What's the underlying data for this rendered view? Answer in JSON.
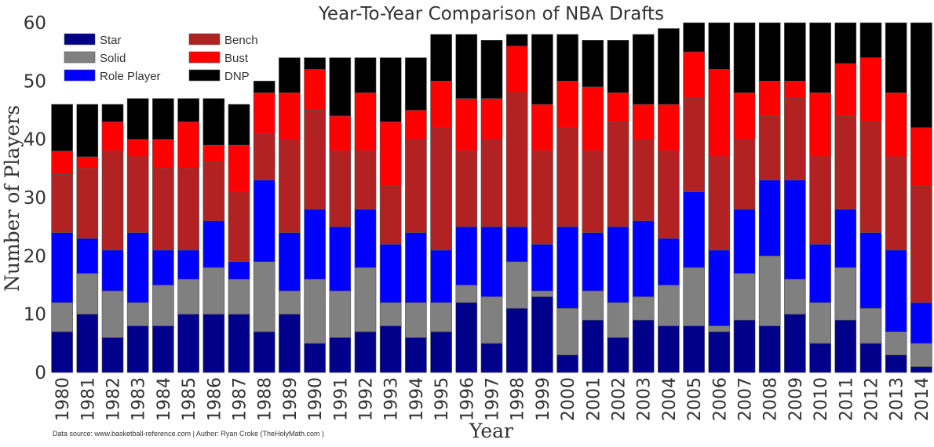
{
  "chart_data": {
    "type": "bar",
    "stacked": true,
    "title": "Year-To-Year Comparison of NBA Drafts",
    "xlabel": "Year",
    "ylabel": "Number of Players",
    "ylim": [
      0,
      60
    ],
    "yticks": [
      0,
      10,
      20,
      30,
      40,
      50,
      60
    ],
    "grid": false,
    "legend_position": "top-left",
    "categories": [
      "1980",
      "1981",
      "1982",
      "1983",
      "1984",
      "1985",
      "1986",
      "1987",
      "1988",
      "1989",
      "1990",
      "1991",
      "1992",
      "1993",
      "1994",
      "1995",
      "1996",
      "1997",
      "1998",
      "1999",
      "2000",
      "2001",
      "2002",
      "2003",
      "2004",
      "2005",
      "2006",
      "2007",
      "2008",
      "2009",
      "2010",
      "2011",
      "2012",
      "2013",
      "2014"
    ],
    "series": [
      {
        "name": "Star",
        "color": "#00008b",
        "values": [
          7,
          10,
          6,
          8,
          8,
          10,
          10,
          10,
          7,
          10,
          5,
          6,
          7,
          8,
          6,
          7,
          12,
          5,
          11,
          13,
          3,
          9,
          6,
          9,
          8,
          8,
          7,
          9,
          8,
          10,
          5,
          9,
          5,
          3,
          1
        ]
      },
      {
        "name": "Solid",
        "color": "#808080",
        "values": [
          5,
          7,
          8,
          4,
          7,
          6,
          8,
          6,
          12,
          4,
          11,
          8,
          11,
          4,
          6,
          5,
          3,
          8,
          8,
          1,
          8,
          5,
          6,
          4,
          7,
          10,
          1,
          8,
          12,
          6,
          7,
          9,
          6,
          4,
          4
        ]
      },
      {
        "name": "Role Player",
        "color": "#0000ff",
        "values": [
          12,
          6,
          7,
          12,
          6,
          5,
          8,
          3,
          14,
          10,
          12,
          11,
          10,
          10,
          12,
          9,
          10,
          12,
          6,
          8,
          14,
          10,
          13,
          13,
          8,
          13,
          13,
          11,
          13,
          17,
          10,
          10,
          13,
          14,
          7
        ]
      },
      {
        "name": "Bench",
        "color": "#b22222",
        "values": [
          10,
          12,
          17,
          13,
          14,
          14,
          10,
          12,
          8,
          16,
          17,
          13,
          10,
          10,
          16,
          21,
          13,
          15,
          23,
          16,
          17,
          14,
          18,
          14,
          15,
          16,
          16,
          12,
          11,
          14,
          15,
          16,
          19,
          16,
          20
        ]
      },
      {
        "name": "Bust",
        "color": "#ff0000",
        "values": [
          4,
          2,
          5,
          3,
          5,
          8,
          3,
          8,
          7,
          8,
          7,
          6,
          10,
          11,
          5,
          8,
          9,
          7,
          8,
          8,
          8,
          11,
          5,
          6,
          8,
          8,
          15,
          8,
          6,
          3,
          11,
          9,
          11,
          11,
          10
        ]
      },
      {
        "name": "DNP",
        "color": "#000000",
        "values": [
          8,
          9,
          3,
          7,
          7,
          4,
          8,
          7,
          2,
          6,
          2,
          10,
          6,
          11,
          9,
          8,
          11,
          10,
          2,
          12,
          8,
          8,
          9,
          12,
          13,
          5,
          8,
          12,
          10,
          10,
          12,
          7,
          6,
          12,
          18
        ]
      }
    ]
  },
  "footer": {
    "source": "Data source: www.basketball-reference.com | Author: Ryan Croke (TheHolyMath.com )"
  }
}
